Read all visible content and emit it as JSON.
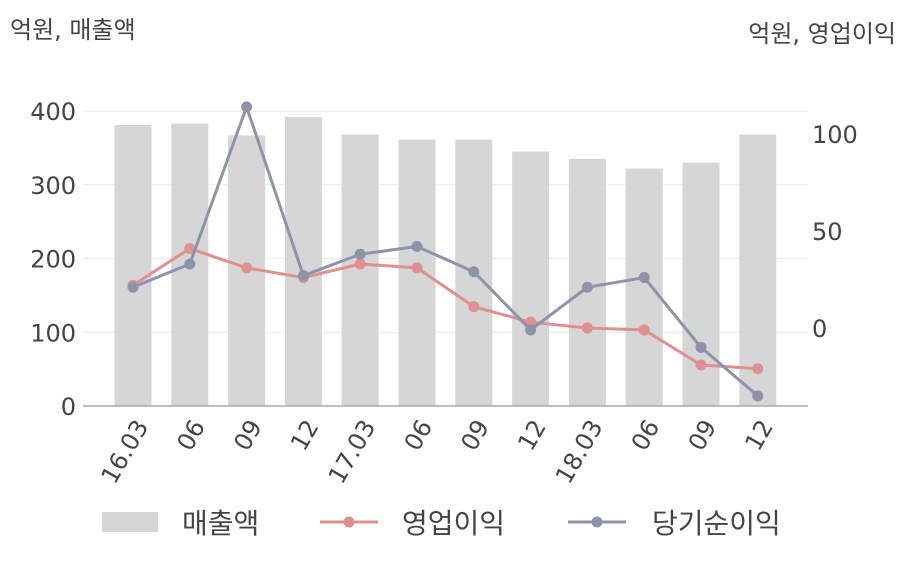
{
  "chart_data": {
    "type": "bar+line",
    "left_axis_label": "억원, 매출액",
    "right_axis_label": "억원, 영업이익",
    "categories": [
      "16.03",
      "06",
      "09",
      "12",
      "17.03",
      "06",
      "09",
      "12",
      "18.03",
      "06",
      "09",
      "12"
    ],
    "left_axis": {
      "ylim": [
        0,
        400
      ],
      "ticks": [
        0,
        100,
        200,
        300,
        400
      ]
    },
    "right_axis": {
      "ylim": [
        -40,
        120
      ],
      "ticks": [
        0,
        50,
        100
      ]
    },
    "grid": true,
    "legend_placement": "bottom",
    "series": [
      {
        "name": "매출액",
        "type": "bar",
        "axis": "left",
        "color": "#d6d6d6",
        "values": [
          381,
          383,
          367,
          392,
          368,
          361,
          361,
          345,
          335,
          322,
          330,
          368
        ]
      },
      {
        "name": "영업이익",
        "type": "line",
        "axis": "right",
        "color": "#e09090",
        "values": [
          22,
          41,
          31,
          26,
          33,
          31,
          11,
          3,
          0,
          -1,
          -19,
          -21
        ]
      },
      {
        "name": "당기순이익",
        "type": "line",
        "axis": "right",
        "color": "#8f93aa",
        "values": [
          21,
          33,
          114,
          27,
          38,
          42,
          29,
          -1,
          21,
          26,
          -10,
          -35
        ]
      }
    ]
  }
}
